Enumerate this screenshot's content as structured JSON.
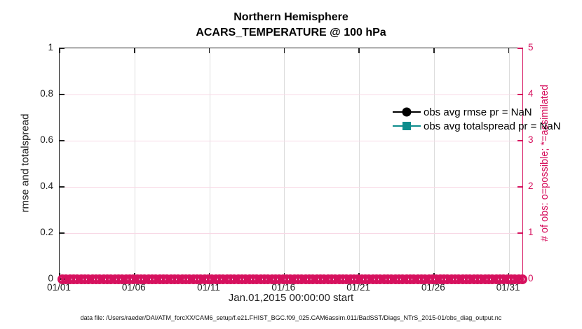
{
  "title": {
    "line1": "Northern Hemisphere",
    "line2": "ACARS_TEMPERATURE @ 100 hPa"
  },
  "axes": {
    "left": {
      "label": "rmse and totalspread",
      "ticks": [
        "0",
        "0.2",
        "0.4",
        "0.6",
        "0.8",
        "1"
      ],
      "color": "#202020"
    },
    "right": {
      "label": "# of obs: o=possible; *=assimilated",
      "ticks": [
        "0",
        "1",
        "2",
        "3",
        "4",
        "5"
      ],
      "color": "#d6115e"
    },
    "x": {
      "ticks": [
        "01/01",
        "01/06",
        "01/11",
        "01/16",
        "01/21",
        "01/26",
        "01/31"
      ],
      "label": "Jan.01,2015 00:00:00 start"
    }
  },
  "legend": [
    {
      "label": "obs avg rmse pr = NaN",
      "color": "#000000",
      "marker": "circle"
    },
    {
      "label": "obs avg totalspread pr = NaN",
      "color": "#0d8c8c",
      "marker": "square"
    }
  ],
  "caption": "data file: /Users/raeder/DAI/ATM_forcXX/CAM6_setup/f.e21.FHIST_BGC.f09_025.CAM6assim.011/BadSST/Diags_NTrS_2015-01/obs_diag_output.nc",
  "chart_data": {
    "type": "line",
    "title": "Northern Hemisphere / ACARS_TEMPERATURE @ 100 hPa",
    "xlabel": "Jan.01,2015 00:00:00 start",
    "x_ticks": [
      "01/01",
      "01/06",
      "01/11",
      "01/16",
      "01/21",
      "01/26",
      "01/31"
    ],
    "ylabel_left": "rmse and totalspread",
    "ylim_left": [
      0,
      1
    ],
    "yticks_left": [
      0,
      0.2,
      0.4,
      0.6,
      0.8,
      1
    ],
    "ylabel_right": "# of obs: o=possible; *=assimilated",
    "ylim_right": [
      0,
      5
    ],
    "yticks_right": [
      0,
      1,
      2,
      3,
      4,
      5
    ],
    "grid": true,
    "legend_position": "top-right-inside",
    "series": [
      {
        "name": "obs avg rmse pr = NaN",
        "axis": "left",
        "color": "#000000",
        "marker": "filled-circle",
        "values": [],
        "note": "all values NaN - no line drawn"
      },
      {
        "name": "obs avg totalspread pr = NaN",
        "axis": "left",
        "color": "#0d8c8c",
        "marker": "filled-square",
        "values": [],
        "note": "all values NaN - no line drawn"
      },
      {
        "name": "# of obs possible",
        "axis": "right",
        "color": "#d6115e",
        "marker": "o",
        "constant_value": 0,
        "n_points": 124,
        "note": "dense row of open circles along y=0 spanning 01/01 to 02/01"
      }
    ]
  }
}
